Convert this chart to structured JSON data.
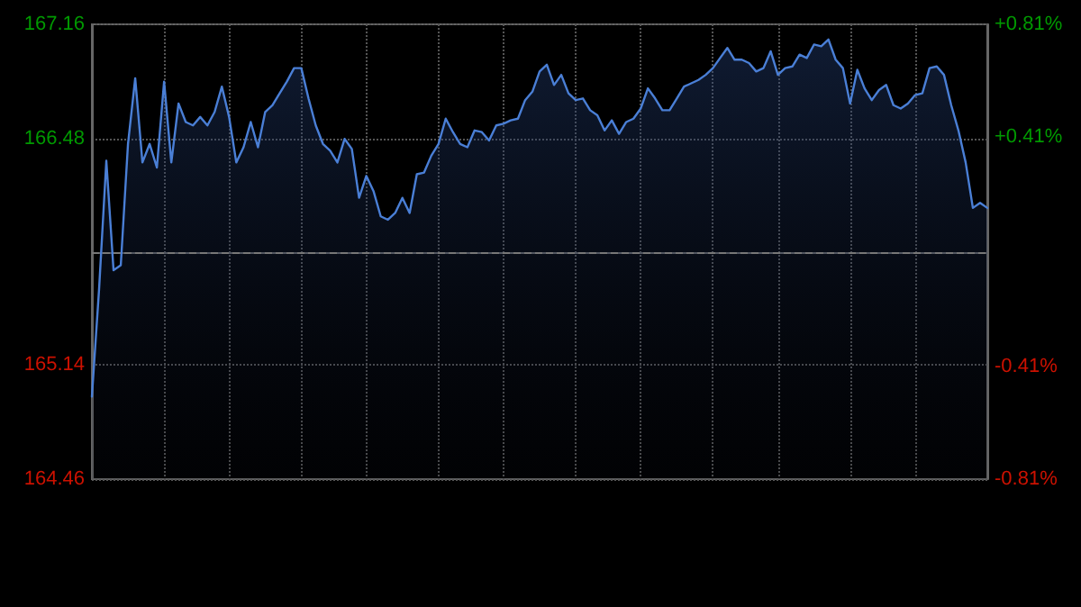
{
  "chart_data": {
    "type": "area",
    "categories": [
      null,
      null,
      null,
      null,
      null,
      null,
      null,
      null,
      null,
      null,
      null,
      null,
      null,
      null,
      null,
      null,
      null,
      null,
      null,
      null,
      null,
      null,
      null,
      null,
      null,
      null,
      null,
      null,
      null,
      null,
      null,
      null,
      null,
      null,
      null,
      null,
      null,
      null,
      null,
      null,
      null,
      null,
      null,
      null,
      null,
      null,
      null,
      null,
      null,
      null,
      null,
      null,
      null,
      null,
      null,
      null,
      null,
      null,
      null,
      null,
      null,
      null,
      null,
      null,
      null,
      null,
      null,
      null,
      null,
      null,
      null,
      null,
      null,
      null,
      null,
      null,
      null,
      null,
      null,
      null,
      null,
      null,
      null,
      null,
      null,
      null,
      null,
      null,
      null,
      null,
      null,
      null,
      null,
      null,
      null,
      null,
      null,
      null,
      null,
      null,
      null,
      null,
      null,
      null,
      null,
      null,
      null,
      null,
      null,
      null,
      null,
      null,
      null,
      null,
      null,
      null,
      null,
      null,
      null,
      null,
      null,
      null,
      null,
      null,
      null
    ],
    "series": [
      {
        "color": "#4a7fd6",
        "values": [
          164.95,
          165.59,
          166.35,
          165.7,
          165.73,
          166.45,
          166.84,
          166.34,
          166.45,
          166.31,
          166.82,
          166.34,
          166.69,
          166.58,
          166.56,
          166.61,
          166.56,
          166.64,
          166.79,
          166.61,
          166.34,
          166.43,
          166.58,
          166.43,
          166.64,
          166.68,
          166.75,
          166.82,
          166.9,
          166.9,
          166.72,
          166.56,
          166.45,
          166.41,
          166.34,
          166.48,
          166.42,
          166.13,
          166.26,
          166.17,
          166.02,
          166.0,
          166.04,
          166.13,
          166.04,
          166.27,
          166.28,
          166.38,
          166.45,
          166.6,
          166.52,
          166.45,
          166.43,
          166.53,
          166.52,
          166.47,
          166.56,
          166.57,
          166.59,
          166.6,
          166.71,
          166.76,
          166.88,
          166.92,
          166.8,
          166.86,
          166.75,
          166.71,
          166.72,
          166.65,
          166.62,
          166.53,
          166.59,
          166.51,
          166.58,
          166.6,
          166.66,
          166.78,
          166.72,
          166.65,
          166.65,
          166.72,
          166.79,
          166.81,
          166.83,
          166.86,
          166.9,
          166.96,
          167.02,
          166.95,
          166.95,
          166.93,
          166.88,
          166.9,
          167.0,
          166.86,
          166.9,
          166.91,
          166.98,
          166.96,
          167.04,
          167.03,
          167.07,
          166.95,
          166.9,
          166.69,
          166.89,
          166.78,
          166.71,
          166.77,
          166.8,
          166.68,
          166.66,
          166.69,
          166.74,
          166.75,
          166.9,
          166.91,
          166.86,
          166.68,
          166.53,
          166.34,
          166.07,
          166.1,
          166.07
        ]
      }
    ],
    "ylim": [
      164.46,
      167.16
    ],
    "yticks": [
      164.46,
      165.14,
      166.48,
      167.16
    ],
    "y2lim": [
      -0.81,
      0.81
    ],
    "y2ticks": [
      {
        "value": -0.81,
        "label": "-0.81%"
      },
      {
        "value": -0.41,
        "label": "-0.41%"
      },
      {
        "value": 0.41,
        "label": "+0.41%"
      },
      {
        "value": 0.81,
        "label": "+0.81%"
      }
    ],
    "ref_lines": [
      {
        "axis": "y",
        "value": 165.81,
        "line_style": "dashed",
        "color": "#777777"
      }
    ],
    "grid": true,
    "line_style": "solid",
    "tick_labels": "y"
  }
}
